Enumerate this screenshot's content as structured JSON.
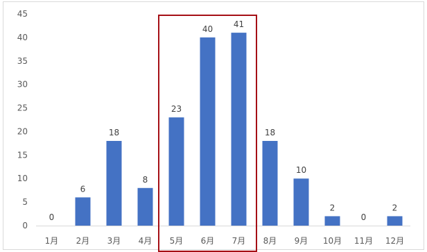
{
  "chart_data": {
    "type": "bar",
    "categories": [
      "1月",
      "2月",
      "3月",
      "4月",
      "5月",
      "6月",
      "7月",
      "8月",
      "9月",
      "10月",
      "11月",
      "12月"
    ],
    "values": [
      0,
      6,
      18,
      8,
      23,
      40,
      41,
      18,
      10,
      2,
      0,
      2
    ],
    "ylim": [
      0,
      45
    ],
    "yticks": [
      "0",
      "5",
      "10",
      "15",
      "20",
      "25",
      "30",
      "35",
      "40",
      "45"
    ],
    "grid": false,
    "bar_color": "#4472c4",
    "highlight": {
      "from_index": 4,
      "to_index": 6,
      "color": "#a50f15"
    }
  }
}
